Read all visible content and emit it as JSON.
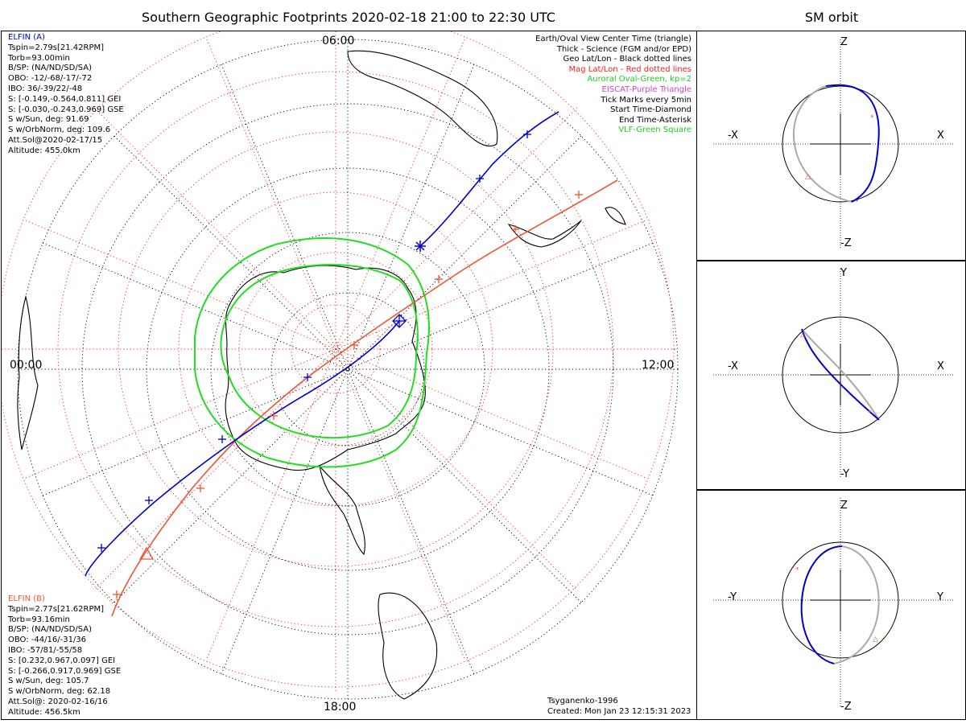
{
  "title": "Southern Geographic Footprints 2020-02-18 21:00 to 22:30 UTC",
  "sm_title": "SM orbit",
  "colors": {
    "elfin_a": "#0000cc",
    "elfin_b": "#ee5533",
    "oval": "#22dd22",
    "mag_grid": "#ee2222",
    "geo_grid": "#000000",
    "orbit_gray": "#aaaaaa"
  },
  "elfin_a": {
    "name": "ELFIN (A)",
    "lines": [
      "Tspin=2.79s[21.42RPM]",
      "Torb=93.00min",
      "B/SP: (NA/ND/SD/SA)",
      "OBO: -12/-68/-17/-72",
      "IBO: 36/-39/22/-48",
      "S: [-0.149,-0.564,0.811] GEI",
      "S: [-0.030,-0.243,0.969] GSE",
      "S w/Sun, deg: 91.69",
      "S w/OrbNorm, deg: 109.6",
      "Att.Sol@2020-02-17/15",
      "Altitude: 455.0km"
    ]
  },
  "elfin_b": {
    "name": "ELFIN (B)",
    "lines": [
      "Tspin=2.77s[21.62RPM]",
      "Torb=93.16min",
      "B/SP: (NA/ND/SD/SA)",
      "OBO: -44/16/-31/36",
      "IBO: -57/81/-55/58",
      "S: [0.232,0.967,0.097] GEI",
      "S: [-0.266,0.917,0.969] GSE",
      "S w/Sun, deg: 105.7",
      "S w/OrbNorm, deg: 62.18",
      "Att.Sol@: 2020-02-16/16",
      "Altitude: 456.5km"
    ]
  },
  "legend": [
    {
      "text": "Earth/Oval View Center Time (triangle)",
      "color": "#000000"
    },
    {
      "text": "Thick - Science (FGM and/or EPD)",
      "color": "#000000"
    },
    {
      "text": "Geo Lat/Lon - Black dotted lines",
      "color": "#000000"
    },
    {
      "text": "Mag Lat/Lon - Red dotted lines",
      "color": "#ee2222"
    },
    {
      "text": "Auroral Oval-Green, kp=2",
      "color": "#22cc22"
    },
    {
      "text": "EISCAT-Purple Triangle",
      "color": "#cc44cc"
    },
    {
      "text": "Tick Marks every 5min",
      "color": "#000000"
    },
    {
      "text": "Start Time-Diamond",
      "color": "#000000"
    },
    {
      "text": "End Time-Asterisk",
      "color": "#000000"
    },
    {
      "text": "VLF-Green Square",
      "color": "#22cc22"
    }
  ],
  "mlt_labels": {
    "top": "06:00",
    "left": "00:00",
    "right": "12:00",
    "bottom": "18:00"
  },
  "footer": {
    "model": "Tsyganenko-1996",
    "created": "Created: Mon Jan 23 12:15:31 2023"
  },
  "sm_panels": [
    {
      "up": "Z",
      "down": "-Z",
      "left": "-X",
      "right": "X"
    },
    {
      "up": "Y",
      "down": "-Y",
      "left": "-X",
      "right": "X"
    },
    {
      "up": "Z",
      "down": "-Z",
      "left": "-Y",
      "right": "Y"
    }
  ]
}
